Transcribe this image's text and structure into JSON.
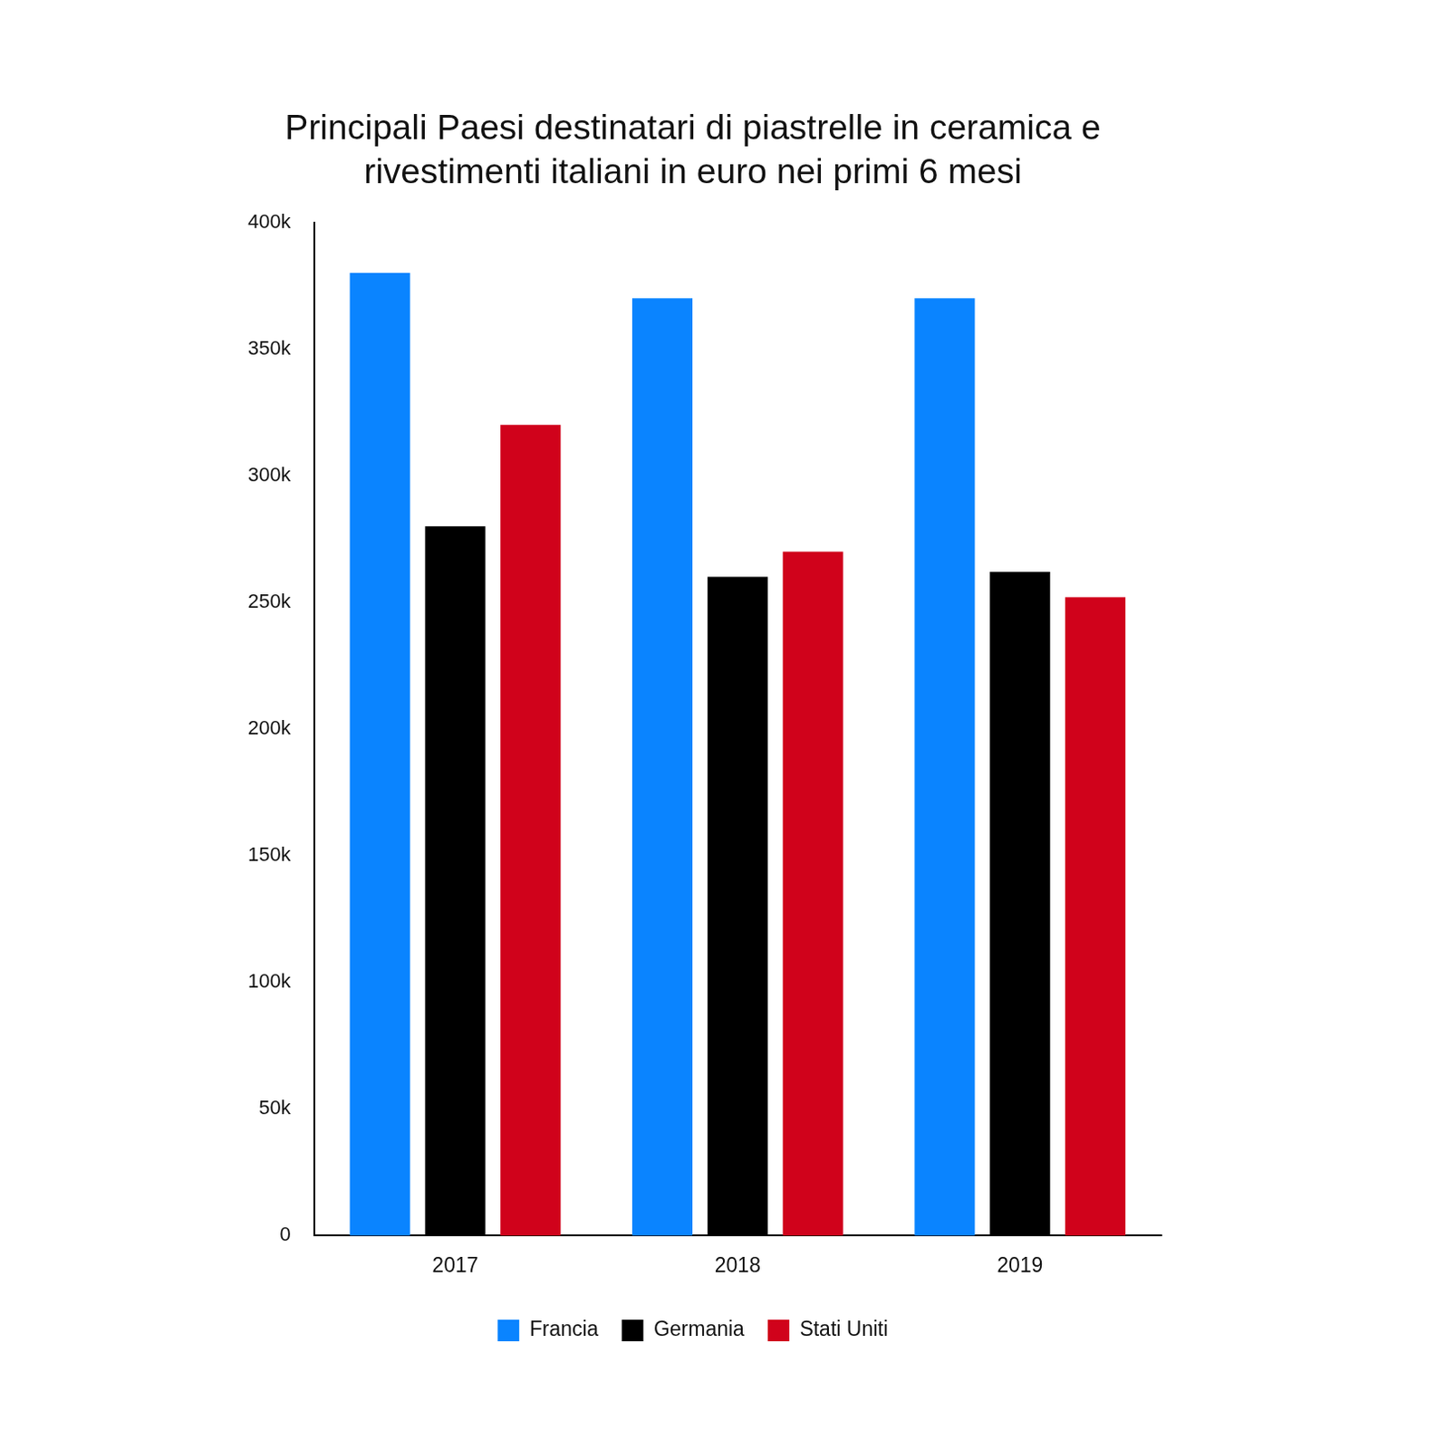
{
  "chart_data": {
    "type": "bar",
    "title": [
      "Principali Paesi destinatari di piastrelle in ceramica e",
      "rivestimenti italiani in euro nei primi 6 mesi"
    ],
    "categories": [
      "2017",
      "2018",
      "2019"
    ],
    "series": [
      {
        "name": "Francia",
        "color": "#0a84ff",
        "values": [
          380000,
          370000,
          370000
        ]
      },
      {
        "name": "Germania",
        "color": "#000000",
        "values": [
          280000,
          260000,
          262000
        ]
      },
      {
        "name": "Stati Uniti",
        "color": "#d0021b",
        "values": [
          320000,
          270000,
          252000
        ]
      }
    ],
    "ylim": [
      0,
      400000
    ],
    "yticks": [
      0,
      {
        "value": 50000,
        "label": "50k"
      },
      {
        "value": 100000,
        "label": "100k"
      },
      {
        "value": 150000,
        "label": "150k"
      },
      {
        "value": 200000,
        "label": "200k"
      },
      {
        "value": 250000,
        "label": "250k"
      },
      {
        "value": 300000,
        "label": "300k"
      },
      {
        "value": 350000,
        "label": "350k"
      },
      {
        "value": 400000,
        "label": "400k"
      }
    ],
    "grid": false,
    "legend": "bottom"
  }
}
